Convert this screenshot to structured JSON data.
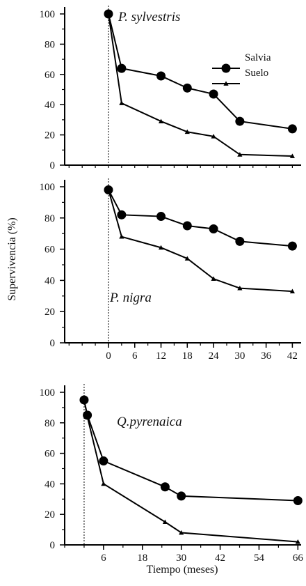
{
  "chart_data": [
    {
      "type": "line",
      "title": "P.  sylvestris",
      "x_ticks": [],
      "ylim": [
        0,
        100
      ],
      "y_ticks": [
        0,
        20,
        40,
        60,
        80,
        100
      ],
      "xlim": [
        -10,
        44
      ],
      "event_line_x": 0,
      "legend": {
        "position": "top-right",
        "entries": [
          "Salvia",
          "Suelo"
        ]
      },
      "series": [
        {
          "name": "Salvia",
          "marker": "circle",
          "x": [
            0,
            3,
            12,
            18,
            24,
            30,
            42
          ],
          "y": [
            100,
            64,
            59,
            51,
            47,
            29,
            24
          ]
        },
        {
          "name": "Suelo",
          "marker": "triangle",
          "x": [
            0,
            3,
            12,
            18,
            24,
            30,
            42
          ],
          "y": [
            100,
            41,
            29,
            22,
            19,
            7,
            6
          ]
        }
      ]
    },
    {
      "type": "line",
      "title": "P. nigra",
      "x_ticks": [
        0,
        6,
        12,
        18,
        24,
        30,
        36,
        42
      ],
      "ylim": [
        0,
        100
      ],
      "y_ticks": [
        0,
        20,
        40,
        60,
        80,
        100
      ],
      "xlim": [
        -10,
        44
      ],
      "event_line_x": 0,
      "series": [
        {
          "name": "Salvia",
          "marker": "circle",
          "x": [
            0,
            3,
            12,
            18,
            24,
            30,
            42
          ],
          "y": [
            98,
            82,
            81,
            75,
            73,
            65,
            62
          ]
        },
        {
          "name": "Suelo",
          "marker": "triangle",
          "x": [
            0,
            3,
            12,
            18,
            24,
            30,
            42
          ],
          "y": [
            98,
            68,
            61,
            54,
            41,
            35,
            33
          ]
        }
      ]
    },
    {
      "type": "line",
      "title": "Q.pyrenaica",
      "xlabel": "Tiempo  (meses)",
      "x_ticks": [
        6,
        18,
        30,
        42,
        54,
        66
      ],
      "ylim": [
        0,
        100
      ],
      "y_ticks": [
        0,
        20,
        40,
        60,
        80,
        100
      ],
      "xlim": [
        -6,
        67
      ],
      "event_line_x": 0,
      "series": [
        {
          "name": "Salvia",
          "marker": "circle",
          "x": [
            0,
            1,
            6,
            25,
            30,
            66
          ],
          "y": [
            95,
            85,
            55,
            38,
            32,
            29
          ]
        },
        {
          "name": "Suelo",
          "marker": "triangle",
          "x": [
            0,
            1,
            6,
            25,
            30,
            66
          ],
          "y": [
            95,
            84,
            40,
            15,
            8,
            2
          ]
        }
      ]
    }
  ],
  "shared_ylabel": "Supervivencia (%)"
}
